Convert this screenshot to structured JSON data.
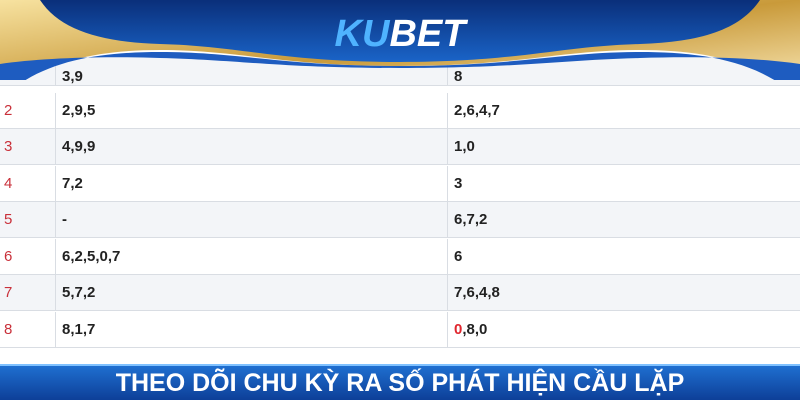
{
  "header": {
    "logo_ku": "KU",
    "logo_bet": "BET"
  },
  "table": {
    "rows": [
      {
        "index": null,
        "left": "3,9",
        "right": "8"
      },
      {
        "index": "2",
        "left": "2,9,5",
        "right": "2,6,4,7"
      },
      {
        "index": "3",
        "left": "4,9,9",
        "right": "1,0"
      },
      {
        "index": "4",
        "left": "7,2",
        "right": "3"
      },
      {
        "index": "5",
        "left": "-",
        "right": "6,7,2"
      },
      {
        "index": "6",
        "left": "6,2,5,0,7",
        "right": "6"
      },
      {
        "index": "7",
        "left": "5,7,2",
        "right": "7,6,4,8"
      },
      {
        "index": "8",
        "left": "8,1,7",
        "right_highlight": "0",
        "right": ",8,0"
      }
    ]
  },
  "footer": {
    "caption": "THEO DÕI CHU KỲ RA SỐ PHÁT HIỆN CẦU LẶP"
  }
}
